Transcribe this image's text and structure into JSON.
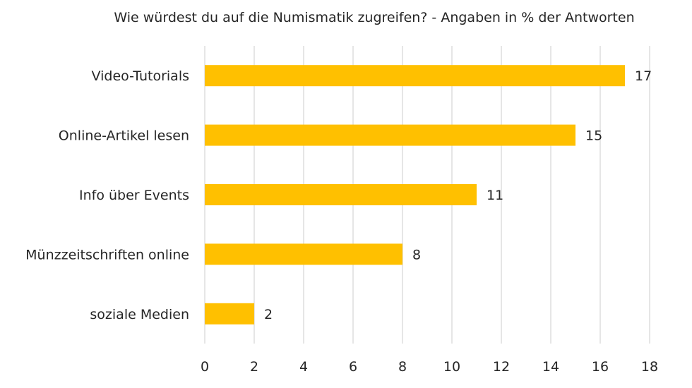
{
  "chart_data": {
    "type": "bar",
    "orientation": "horizontal",
    "title": "Wie würdest du auf die Numismatik zugreifen? - Angaben in % der Antworten",
    "xlabel": "",
    "ylabel": "",
    "categories": [
      "Video-Tutorials",
      "Online-Artikel lesen",
      "Info über Events",
      "Münzzeitschriften online",
      "soziale Medien"
    ],
    "values": [
      17,
      15,
      11,
      8,
      2
    ],
    "xlim": [
      0,
      18
    ],
    "xticks": [
      "0",
      "2",
      "4",
      "6",
      "8",
      "10",
      "12",
      "14",
      "16",
      "18"
    ],
    "grid": true,
    "legend": "none",
    "bar_color": "#FFC000",
    "grid_color": "#D9D9D9"
  }
}
